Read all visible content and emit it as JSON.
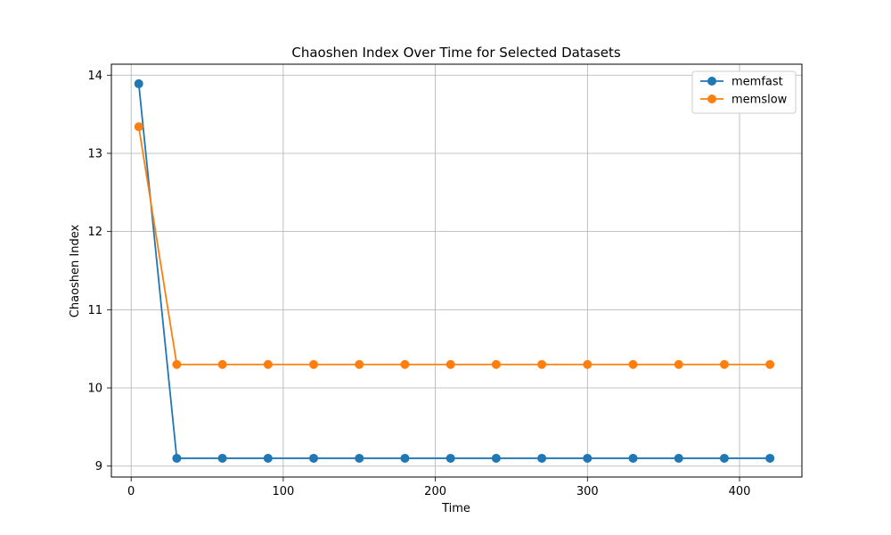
{
  "chart_data": {
    "type": "line",
    "title": "Chaoshen Index Over Time for Selected Datasets",
    "xlabel": "Time",
    "ylabel": "Chaoshen Index",
    "xlim": [
      -13,
      441
    ],
    "ylim": [
      8.86,
      14.14
    ],
    "xticks": [
      0,
      100,
      200,
      300,
      400
    ],
    "yticks": [
      9,
      10,
      11,
      12,
      13,
      14
    ],
    "grid": true,
    "legend_position": "top-right",
    "series": [
      {
        "name": "memfast",
        "color": "#1f77b4",
        "x": [
          5,
          30,
          60,
          90,
          120,
          150,
          180,
          210,
          240,
          270,
          300,
          330,
          360,
          390,
          420
        ],
        "y": [
          13.89,
          9.1,
          9.1,
          9.1,
          9.1,
          9.1,
          9.1,
          9.1,
          9.1,
          9.1,
          9.1,
          9.1,
          9.1,
          9.1,
          9.1
        ]
      },
      {
        "name": "memslow",
        "color": "#ff7f0e",
        "x": [
          5,
          30,
          60,
          90,
          120,
          150,
          180,
          210,
          240,
          270,
          300,
          330,
          360,
          390,
          420
        ],
        "y": [
          13.34,
          10.3,
          10.3,
          10.3,
          10.3,
          10.3,
          10.3,
          10.3,
          10.3,
          10.3,
          10.3,
          10.3,
          10.3,
          10.3,
          10.3
        ]
      }
    ]
  }
}
